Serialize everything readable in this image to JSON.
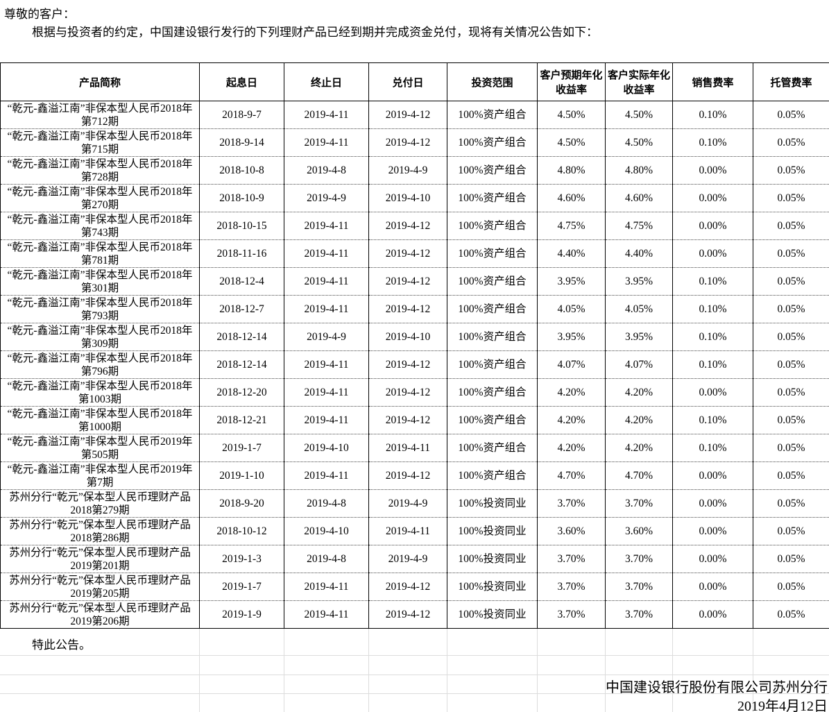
{
  "intro": {
    "salutation": "尊敬的客户：",
    "body": "根据与投资者的约定，中国建设银行发行的下列理财产品已经到期并完成资金兑付，现将有关情况公告如下："
  },
  "table": {
    "headers": [
      "产品简称",
      "起息日",
      "终止日",
      "兑付日",
      "投资范围",
      "客户预期年化收益率",
      "客户实际年化收益率",
      "销售费率",
      "托管费率"
    ],
    "rows": [
      [
        "“乾元-鑫溢江南”非保本型人民币2018年第712期",
        "2018-9-7",
        "2019-4-11",
        "2019-4-12",
        "100%资产组合",
        "4.50%",
        "4.50%",
        "0.10%",
        "0.05%"
      ],
      [
        "“乾元-鑫溢江南”非保本型人民币2018年第715期",
        "2018-9-14",
        "2019-4-11",
        "2019-4-12",
        "100%资产组合",
        "4.50%",
        "4.50%",
        "0.10%",
        "0.05%"
      ],
      [
        "“乾元-鑫溢江南”非保本型人民币2018年第728期",
        "2018-10-8",
        "2019-4-8",
        "2019-4-9",
        "100%资产组合",
        "4.80%",
        "4.80%",
        "0.00%",
        "0.05%"
      ],
      [
        "“乾元-鑫溢江南”非保本型人民币2018年第270期",
        "2018-10-9",
        "2019-4-9",
        "2019-4-10",
        "100%资产组合",
        "4.60%",
        "4.60%",
        "0.00%",
        "0.05%"
      ],
      [
        "“乾元-鑫溢江南”非保本型人民币2018年第743期",
        "2018-10-15",
        "2019-4-11",
        "2019-4-12",
        "100%资产组合",
        "4.75%",
        "4.75%",
        "0.00%",
        "0.05%"
      ],
      [
        "“乾元-鑫溢江南”非保本型人民币2018年第781期",
        "2018-11-16",
        "2019-4-11",
        "2019-4-12",
        "100%资产组合",
        "4.40%",
        "4.40%",
        "0.00%",
        "0.05%"
      ],
      [
        "“乾元-鑫溢江南”非保本型人民币2018年第301期",
        "2018-12-4",
        "2019-4-11",
        "2019-4-12",
        "100%资产组合",
        "3.95%",
        "3.95%",
        "0.10%",
        "0.05%"
      ],
      [
        "“乾元-鑫溢江南”非保本型人民币2018年第793期",
        "2018-12-7",
        "2019-4-11",
        "2019-4-12",
        "100%资产组合",
        "4.05%",
        "4.05%",
        "0.10%",
        "0.05%"
      ],
      [
        "“乾元-鑫溢江南”非保本型人民币2018年第309期",
        "2018-12-14",
        "2019-4-9",
        "2019-4-10",
        "100%资产组合",
        "3.95%",
        "3.95%",
        "0.10%",
        "0.05%"
      ],
      [
        "“乾元-鑫溢江南”非保本型人民币2018年第796期",
        "2018-12-14",
        "2019-4-11",
        "2019-4-12",
        "100%资产组合",
        "4.07%",
        "4.07%",
        "0.10%",
        "0.05%"
      ],
      [
        "“乾元-鑫溢江南”非保本型人民币2018年第1003期",
        "2018-12-20",
        "2019-4-11",
        "2019-4-12",
        "100%资产组合",
        "4.20%",
        "4.20%",
        "0.00%",
        "0.05%"
      ],
      [
        "“乾元-鑫溢江南”非保本型人民币2018年第1000期",
        "2018-12-21",
        "2019-4-11",
        "2019-4-12",
        "100%资产组合",
        "4.20%",
        "4.20%",
        "0.10%",
        "0.05%"
      ],
      [
        "“乾元-鑫溢江南”非保本型人民币2019年第505期",
        "2019-1-7",
        "2019-4-10",
        "2019-4-11",
        "100%资产组合",
        "4.20%",
        "4.20%",
        "0.10%",
        "0.05%"
      ],
      [
        "“乾元-鑫溢江南”非保本型人民币2019年第7期",
        "2019-1-10",
        "2019-4-11",
        "2019-4-12",
        "100%资产组合",
        "4.70%",
        "4.70%",
        "0.00%",
        "0.05%"
      ],
      [
        "苏州分行“乾元”保本型人民币理财产品2018第279期",
        "2018-9-20",
        "2019-4-8",
        "2019-4-9",
        "100%投资同业",
        "3.70%",
        "3.70%",
        "0.00%",
        "0.05%"
      ],
      [
        "苏州分行“乾元”保本型人民币理财产品2018第286期",
        "2018-10-12",
        "2019-4-10",
        "2019-4-11",
        "100%投资同业",
        "3.60%",
        "3.60%",
        "0.00%",
        "0.05%"
      ],
      [
        "苏州分行“乾元”保本型人民币理财产品2019第201期",
        "2019-1-3",
        "2019-4-8",
        "2019-4-9",
        "100%投资同业",
        "3.70%",
        "3.70%",
        "0.00%",
        "0.05%"
      ],
      [
        "苏州分行“乾元”保本型人民币理财产品2019第205期",
        "2019-1-7",
        "2019-4-11",
        "2019-4-12",
        "100%投资同业",
        "3.70%",
        "3.70%",
        "0.00%",
        "0.05%"
      ],
      [
        "苏州分行“乾元”保本型人民币理财产品2019第206期",
        "2019-1-9",
        "2019-4-11",
        "2019-4-12",
        "100%投资同业",
        "3.70%",
        "3.70%",
        "0.00%",
        "0.05%"
      ]
    ]
  },
  "footer": {
    "closing": "特此公告。",
    "signature": "中国建设银行股份有限公司苏州分行",
    "date": "2019年4月12日"
  }
}
